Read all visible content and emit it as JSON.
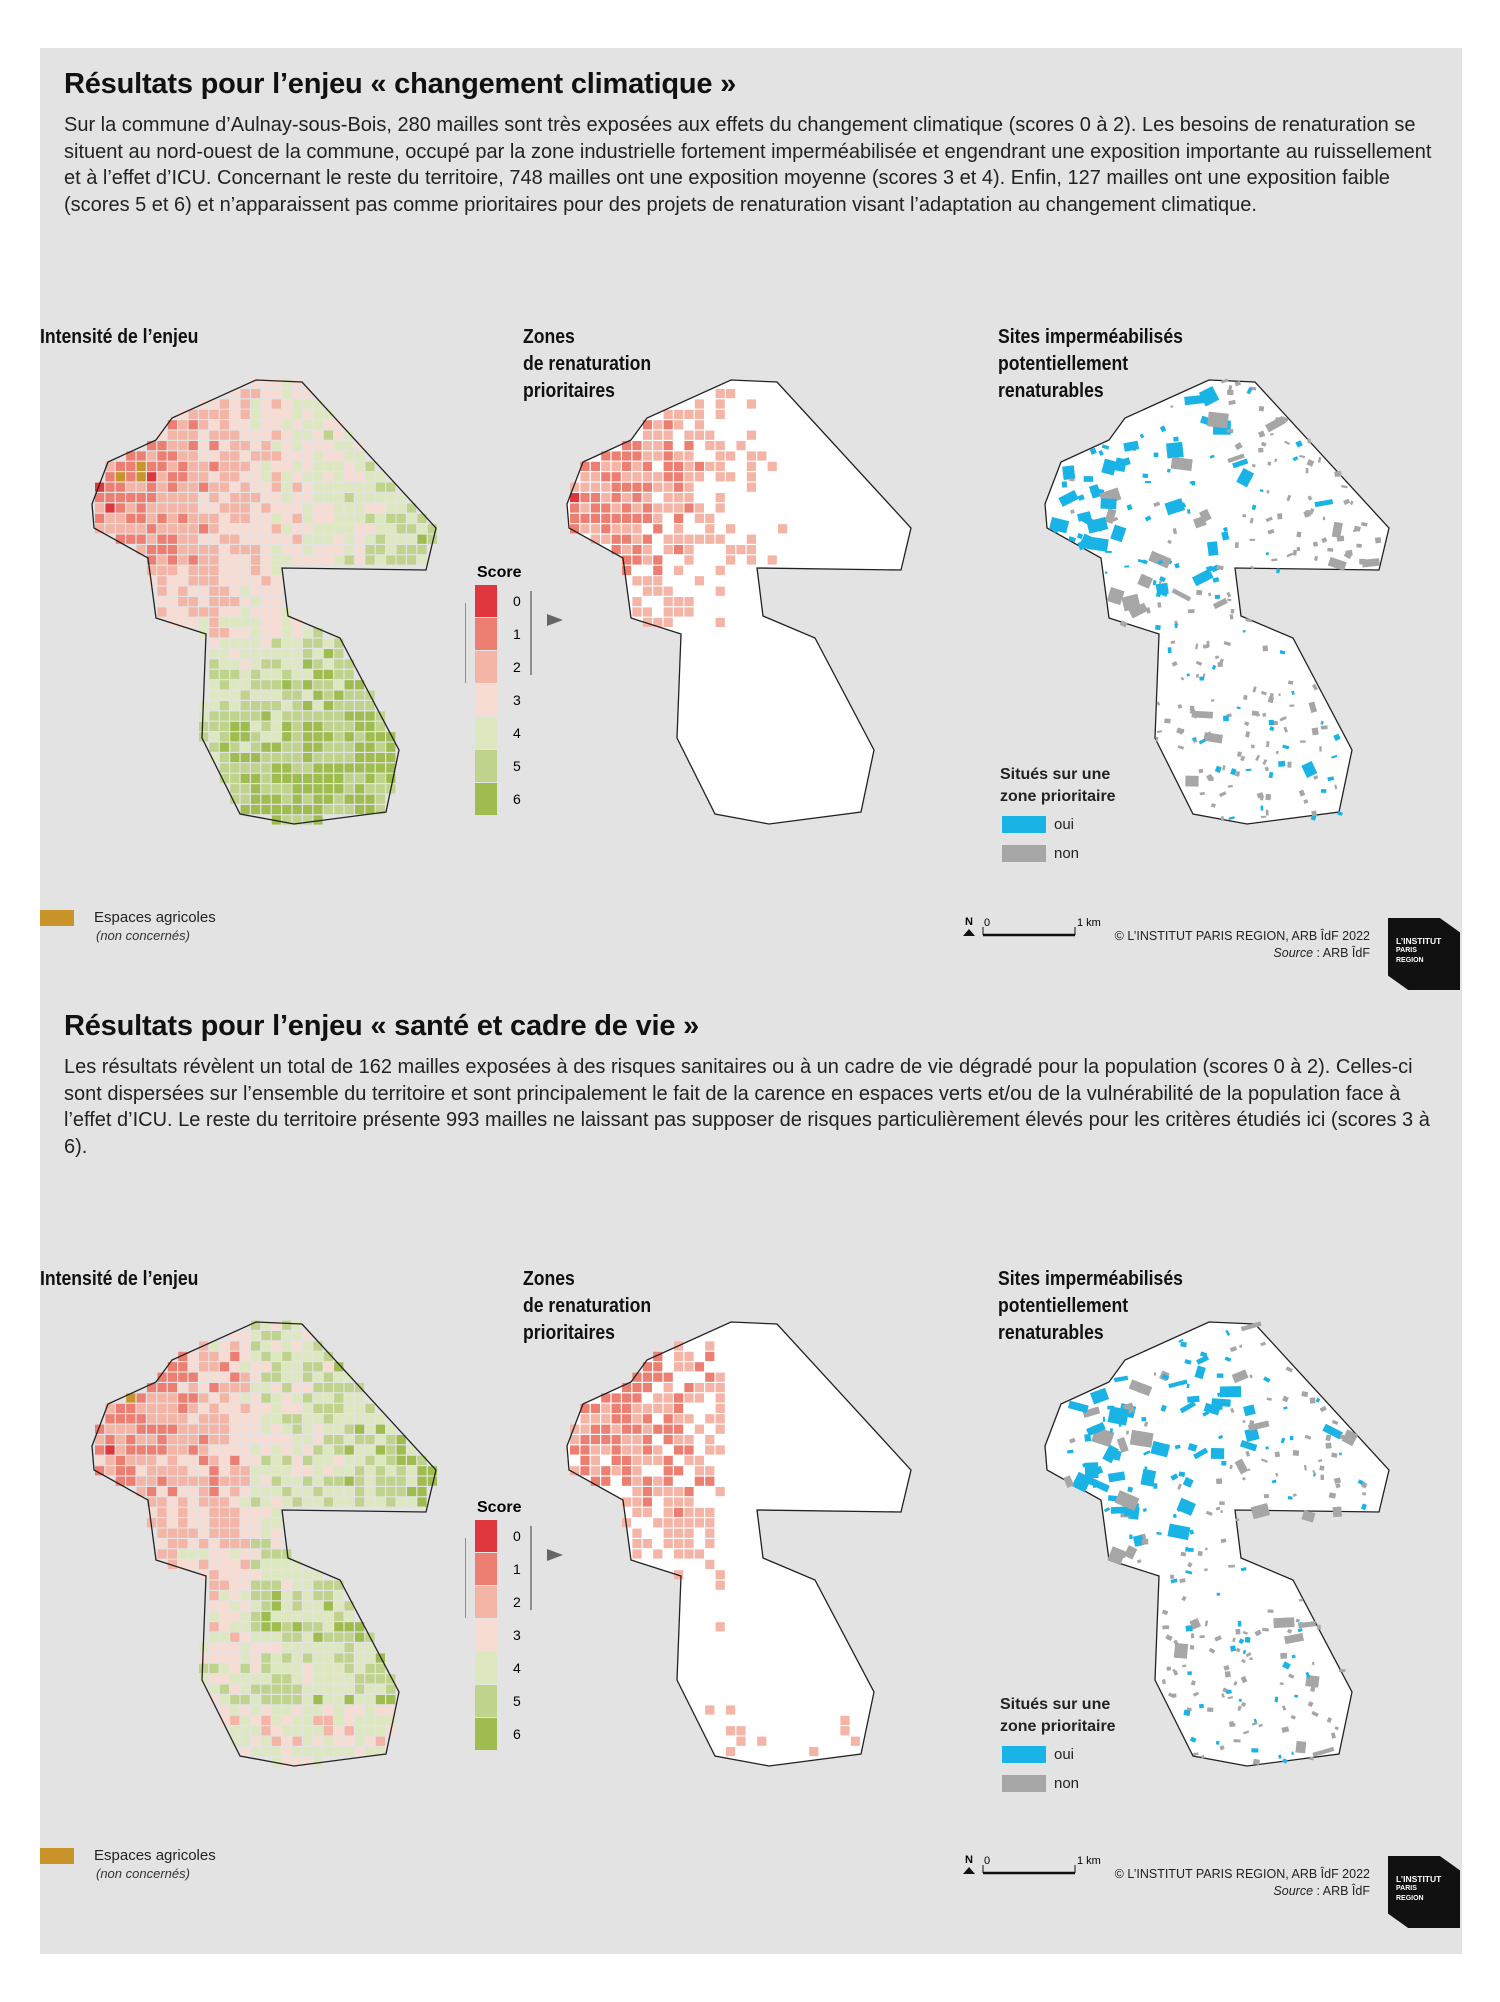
{
  "sections": [
    {
      "title": "Résultats pour l’enjeu « changement climatique »",
      "body": "Sur la commune d’Aulnay-sous-Bois, 280 mailles sont très exposées aux effets du changement climatique (scores 0 à 2). Les besoins de renaturation se situent au nord-ouest de la commune, occupé par la zone industrielle fortement imperméabilisée et engendrant une exposition importante au ruissellement et à l’effet d’ICU. Concernant le reste du territoire, 748 mailles ont une exposition moyenne (scores 3 et 4). Enfin, 127 mailles ont une exposition faible (scores 5 et 6) et n’apparaissent pas comme prioritaires pour des projets de renaturation visant l’adaptation au changement climatique.",
      "map1_title": "Intensité de l’enjeu",
      "map2_title": "Zones\nde renaturation\nprioritaires",
      "map3_title": "Sites imperméabilisés\npotentiellement\nrenaturables"
    },
    {
      "title": "Résultats pour l’enjeu « santé et cadre de vie »",
      "body": "Les résultats révèlent un total de 162 mailles exposées à des risques sanitaires ou à un cadre de vie dégradé pour la population (scores 0 à 2). Celles-ci sont dispersées sur l’ensemble du territoire et sont principalement le fait de la carence en espaces verts et/ou de la vulnérabilité de la population face à l’effet d’ICU. Le reste du territoire présente 993 mailles ne laissant pas supposer de risques particulièrement élevés pour les critères étudiés ici (scores 3 à 6).",
      "map1_title": "Intensité de l’enjeu",
      "map2_title": "Zones\nde renaturation\nprioritaires",
      "map3_title": "Sites imperméabilisés\npotentiellement\nrenaturables"
    }
  ],
  "score_legend": {
    "title": "Score",
    "levels": [
      {
        "label": "0",
        "color": "#e0373f"
      },
      {
        "label": "1",
        "color": "#ec7f72"
      },
      {
        "label": "2",
        "color": "#f4b4a6"
      },
      {
        "label": "3",
        "color": "#f7dcd4"
      },
      {
        "label": "4",
        "color": "#dde8c0"
      },
      {
        "label": "5",
        "color": "#bfd38c"
      },
      {
        "label": "6",
        "color": "#9fbc4f"
      }
    ]
  },
  "agricultural_legend": {
    "label": "Espaces agricoles",
    "note": "(non concernés)",
    "color": "#c9952a"
  },
  "priority_legend": {
    "title": "Situés sur une\nzone prioritaire",
    "yes_label": "oui",
    "yes_color": "#1ab3e6",
    "no_label": "non",
    "no_color": "#a6a6a6"
  },
  "scale_bar": {
    "north": "N",
    "start": "0",
    "end": "1 km"
  },
  "credit": {
    "line1": "© L’INSTITUT PARIS REGION, ARB ÎdF 2022",
    "source_label": "Source",
    "source_value": " : ARB ÎdF"
  },
  "logo": {
    "line1": "L’INSTITUT",
    "line2": "PARIS",
    "line3": "REGION"
  }
}
